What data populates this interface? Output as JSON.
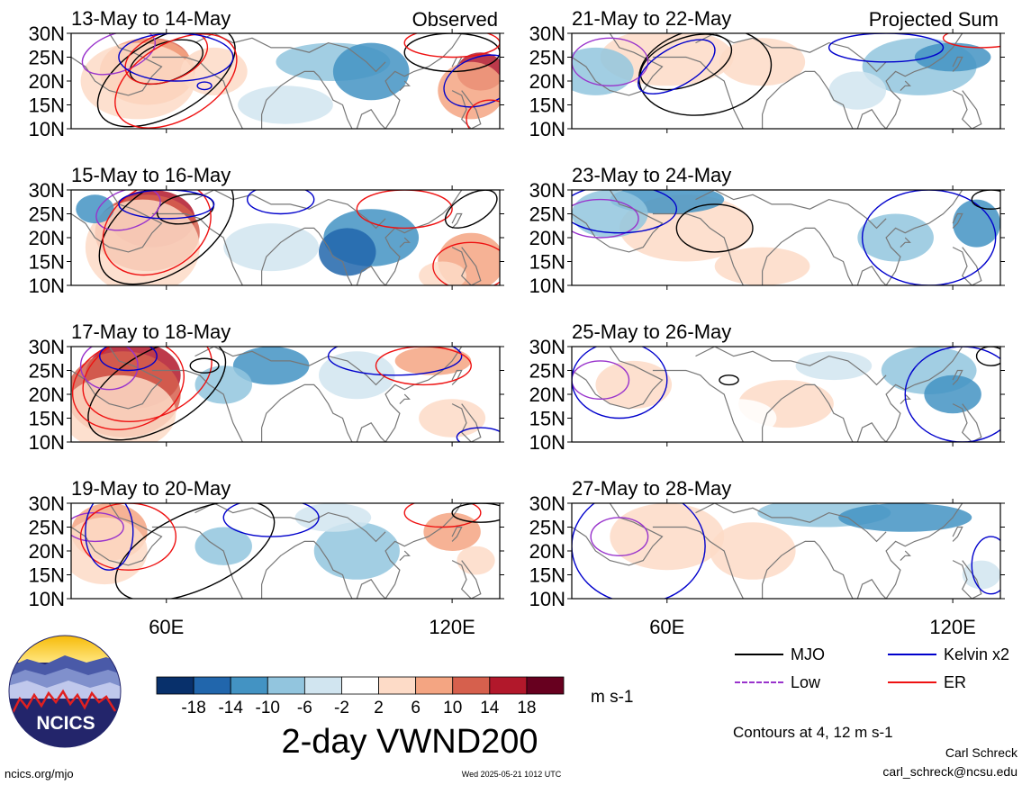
{
  "chart_data": {
    "type": "heatmap",
    "title": "2-day VWND200",
    "units": "m s-1",
    "columns": [
      "Observed",
      "Projected Sum"
    ],
    "panels": [
      {
        "title": "13-May to 14-May",
        "column": "Observed"
      },
      {
        "title": "15-May to 16-May",
        "column": "Observed"
      },
      {
        "title": "17-May to 18-May",
        "column": "Observed"
      },
      {
        "title": "19-May to 20-May",
        "column": "Observed"
      },
      {
        "title": "21-May to 22-May",
        "column": "Projected Sum"
      },
      {
        "title": "23-May to 24-May",
        "column": "Projected Sum"
      },
      {
        "title": "25-May to 26-May",
        "column": "Projected Sum"
      },
      {
        "title": "27-May to 28-May",
        "column": "Projected Sum"
      }
    ],
    "x_axis": {
      "ticks": [
        "60E",
        "120E"
      ],
      "tick_values": [
        60,
        120
      ],
      "range": [
        40,
        130
      ]
    },
    "y_axis": {
      "ticks": [
        "30N",
        "25N",
        "20N",
        "15N",
        "10N"
      ],
      "tick_values": [
        30,
        25,
        20,
        15,
        10
      ],
      "range": [
        10,
        30
      ]
    },
    "colorbar": {
      "labels": [
        "-18",
        "-14",
        "-10",
        "-6",
        "-2",
        "2",
        "6",
        "10",
        "14",
        "18"
      ],
      "colors": [
        "#08306b",
        "#2166ac",
        "#4393c3",
        "#92c5de",
        "#d1e5f0",
        "#ffffff",
        "#fddbc7",
        "#f4a582",
        "#d6604d",
        "#b2182b",
        "#67001f"
      ]
    },
    "legend": [
      {
        "label": "MJO",
        "color": "#000000"
      },
      {
        "label": "Kelvin x2",
        "color": "#0000cc"
      },
      {
        "label": "Low",
        "color": "#9933cc"
      },
      {
        "label": "ER",
        "color": "#ee1111"
      }
    ],
    "contour_note": "Contours at 4, 12 m s-1"
  },
  "footer": {
    "logo_text": "NCICS",
    "url": "ncics.org/mjo",
    "timestamp": "Wed 2025-05-21 1012 UTC",
    "author": "Carl Schreck",
    "email": "carl_schreck@ncsu.edu"
  },
  "colors": {
    "mjo": "#000000",
    "kelvin": "#0000cc",
    "low": "#9933cc",
    "er": "#ee1111",
    "coast": "#777777",
    "axis": "#000000"
  }
}
